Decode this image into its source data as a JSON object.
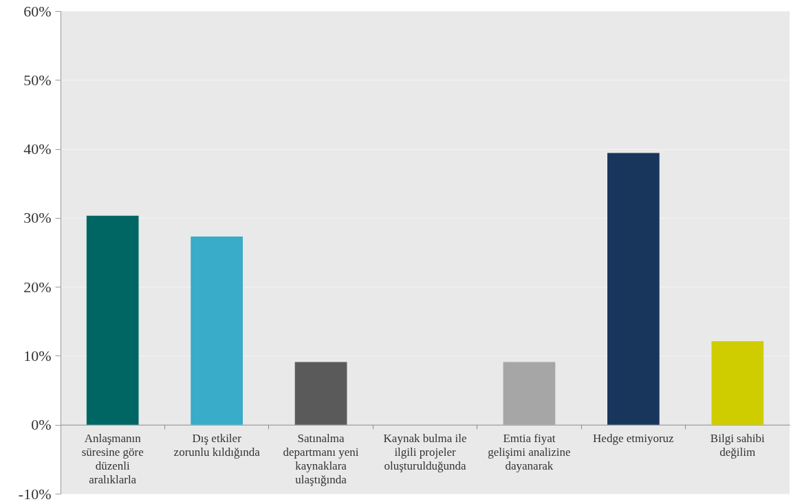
{
  "chart_data": {
    "type": "bar",
    "categories": [
      "Anlaşmanın süresine göre düzenli aralıklarla",
      "Dış etkiler zorunlu kıldığında",
      "Satınalma departmanı yeni kaynaklara ulaştığında",
      "Kaynak bulma ile ilgili projeler oluşturulduğunda",
      "Emtia fiyat gelişimi analizine dayanarak",
      "Hedge etmiyoruz",
      "Bilgi sahibi değilim"
    ],
    "values": [
      30.3,
      27.3,
      9.1,
      0,
      9.1,
      39.4,
      12.1
    ],
    "colors": [
      "#006663",
      "#38acc8",
      "#5a5a5a",
      "#7f7f7f",
      "#a6a6a6",
      "#18365c",
      "#cfcc00"
    ],
    "ylim": [
      -10,
      60
    ],
    "yticks": [
      {
        "value": -10,
        "label": "-10%"
      },
      {
        "value": 0,
        "label": "0%"
      },
      {
        "value": 10,
        "label": "10%"
      },
      {
        "value": 20,
        "label": "20%"
      },
      {
        "value": 30,
        "label": "30%"
      },
      {
        "value": 40,
        "label": "40%"
      },
      {
        "value": 50,
        "label": "50%"
      },
      {
        "value": 60,
        "label": "60%"
      }
    ],
    "grid": "y"
  }
}
